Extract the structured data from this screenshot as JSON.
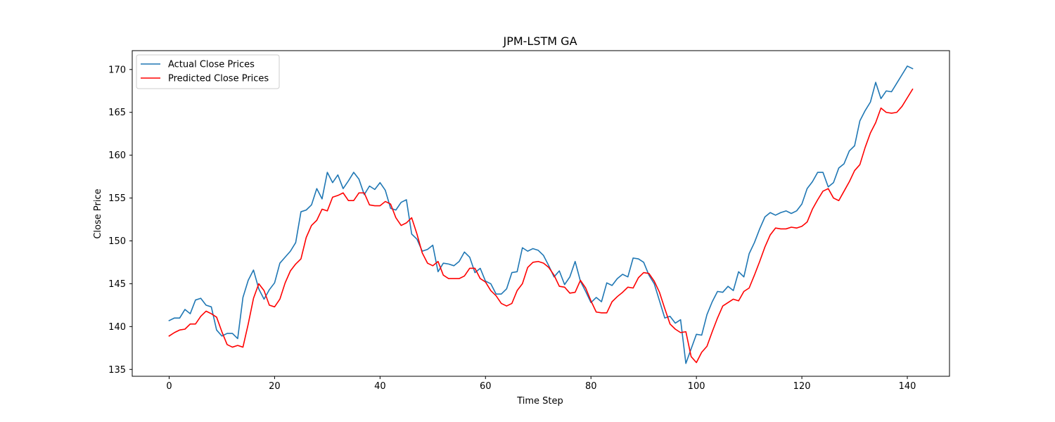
{
  "chart_data": {
    "type": "line",
    "title": "JPM-LSTM GA",
    "xlabel": "Time Step",
    "ylabel": "Close Price",
    "xlim": [
      -7,
      148
    ],
    "ylim": [
      134.2,
      172.2
    ],
    "xticks": [
      0,
      20,
      40,
      60,
      80,
      100,
      120,
      140
    ],
    "yticks": [
      135,
      140,
      145,
      150,
      155,
      160,
      165,
      170
    ],
    "grid": false,
    "legend_position": "top-left",
    "series": [
      {
        "name": "Actual Close Prices",
        "color": "#1f77b4",
        "values": [
          140.7,
          141.0,
          141.0,
          142.0,
          141.5,
          143.1,
          143.3,
          142.5,
          142.3,
          139.6,
          138.9,
          139.2,
          139.2,
          138.6,
          143.4,
          145.4,
          146.6,
          144.4,
          143.2,
          144.3,
          145.1,
          147.4,
          148.1,
          148.8,
          149.8,
          153.4,
          153.6,
          154.2,
          156.1,
          154.9,
          158.0,
          156.8,
          157.7,
          156.1,
          157.0,
          158.0,
          157.2,
          155.4,
          156.4,
          156.0,
          156.8,
          155.9,
          153.8,
          153.6,
          154.5,
          154.8,
          150.8,
          150.2,
          148.8,
          149.0,
          149.5,
          146.4,
          147.4,
          147.3,
          147.1,
          147.6,
          148.7,
          148.1,
          146.3,
          146.8,
          145.3,
          145.0,
          143.8,
          143.8,
          144.4,
          146.3,
          146.4,
          149.2,
          148.8,
          149.1,
          148.9,
          148.3,
          147.1,
          145.8,
          146.5,
          144.9,
          145.8,
          147.6,
          145.3,
          144.1,
          142.8,
          143.4,
          142.9,
          145.1,
          144.8,
          145.6,
          146.1,
          145.8,
          148.0,
          147.9,
          147.5,
          146.0,
          145.0,
          143.0,
          141.0,
          141.2,
          140.4,
          140.8,
          135.7,
          137.4,
          139.1,
          139.0,
          141.4,
          142.9,
          144.1,
          144.0,
          144.7,
          144.2,
          146.4,
          145.8,
          148.5,
          149.8,
          151.4,
          152.8,
          153.3,
          153.0,
          153.3,
          153.5,
          153.2,
          153.5,
          154.3,
          156.1,
          156.9,
          158.0,
          158.0,
          156.3,
          156.8,
          158.5,
          159.0,
          160.5,
          161.1,
          164.0,
          165.2,
          166.2,
          168.5,
          166.6,
          167.5,
          167.4,
          168.4,
          169.4,
          170.4,
          170.1
        ]
      },
      {
        "name": "Predicted Close Prices",
        "color": "#ff0000",
        "values": [
          138.9,
          139.3,
          139.6,
          139.7,
          140.3,
          140.3,
          141.2,
          141.8,
          141.5,
          141.1,
          139.4,
          137.9,
          137.6,
          137.8,
          137.6,
          140.3,
          143.3,
          145.0,
          144.2,
          142.5,
          142.3,
          143.2,
          145.1,
          146.5,
          147.3,
          147.9,
          150.4,
          151.8,
          152.4,
          153.7,
          153.5,
          155.1,
          155.3,
          155.6,
          154.7,
          154.7,
          155.6,
          155.6,
          154.2,
          154.1,
          154.1,
          154.6,
          154.3,
          152.7,
          151.8,
          152.1,
          152.7,
          150.8,
          148.6,
          147.4,
          147.1,
          147.6,
          146.0,
          145.6,
          145.6,
          145.6,
          145.9,
          146.8,
          146.8,
          145.6,
          145.2,
          144.2,
          143.6,
          142.7,
          142.4,
          142.7,
          144.2,
          145.0,
          146.9,
          147.5,
          147.6,
          147.4,
          146.9,
          146.0,
          144.7,
          144.6,
          143.9,
          144.0,
          145.4,
          144.5,
          143.0,
          141.7,
          141.6,
          141.6,
          142.9,
          143.5,
          144.0,
          144.6,
          144.5,
          145.7,
          146.3,
          146.2,
          145.3,
          144.0,
          142.1,
          140.3,
          139.7,
          139.3,
          139.4,
          136.5,
          135.8,
          137.0,
          137.7,
          139.4,
          141.0,
          142.4,
          142.8,
          143.2,
          143.0,
          144.1,
          144.5,
          146.0,
          147.6,
          149.3,
          150.7,
          151.5,
          151.4,
          151.4,
          151.6,
          151.5,
          151.7,
          152.2,
          153.7,
          154.8,
          155.8,
          156.1,
          155.0,
          154.7,
          155.8,
          156.9,
          158.2,
          158.9,
          160.9,
          162.6,
          163.8,
          165.5,
          165.0,
          164.9,
          165.0,
          165.7,
          166.7,
          167.7
        ]
      }
    ]
  }
}
